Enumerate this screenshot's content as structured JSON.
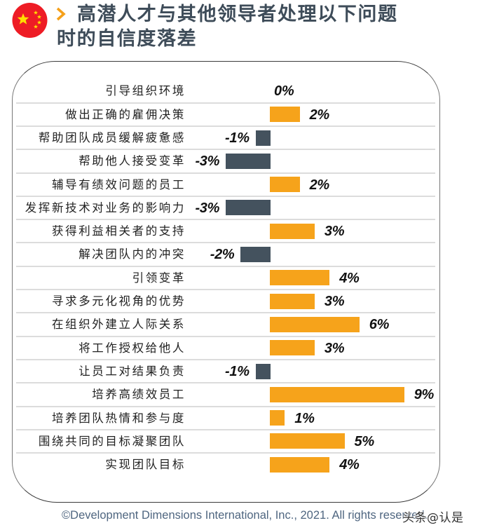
{
  "header": {
    "title_line1": "高潜人才与其他领导者处理以下问题",
    "title_line2": "时的自信度落差",
    "flag_icon": "china-flag-icon",
    "chevron_icon": "chevron-right-icon"
  },
  "colors": {
    "positive_bar": "#f6a31b",
    "negative_bar": "#44525e",
    "title": "#3e4c59",
    "chevron": "#f5a01a",
    "flag_red": "#ee1c25",
    "flag_star": "#ffde00",
    "separator": "#dcdcdc"
  },
  "chart_data": {
    "type": "bar",
    "orientation": "horizontal",
    "title": "高潜人才与其他领导者处理以下问题时的自信度落差",
    "xlabel": "",
    "ylabel": "",
    "unit": "%",
    "grid": false,
    "legend": null,
    "categories": [
      "引导组织环境",
      "做出正确的雇佣决策",
      "帮助团队成员缓解疲惫感",
      "帮助他人接受变革",
      "辅导有绩效问题的员工",
      "发挥新技术对业务的影响力",
      "获得利益相关者的支持",
      "解决团队内的冲突",
      "引领变革",
      "寻求多元化视角的优势",
      "在组织外建立人际关系",
      "将工作授权给他人",
      "让员工对结果负责",
      "培养高绩效员工",
      "培养团队热情和参与度",
      "围绕共同的目标凝聚团队",
      "实现团队目标"
    ],
    "values": [
      0,
      2,
      -1,
      -3,
      2,
      -3,
      3,
      -2,
      4,
      3,
      6,
      3,
      -1,
      9,
      1,
      5,
      4
    ],
    "value_labels": [
      "0%",
      "2%",
      "-1%",
      "-3%",
      "2%",
      "-3%",
      "3%",
      "-2%",
      "4%",
      "3%",
      "6%",
      "3%",
      "-1%",
      "9%",
      "1%",
      "5%",
      "4%"
    ],
    "xlim": [
      -3,
      9
    ]
  },
  "footer": {
    "copyright": "©Development Dimensions International, Inc., 2021. All rights reserved.",
    "watermark": "头条@认是"
  }
}
